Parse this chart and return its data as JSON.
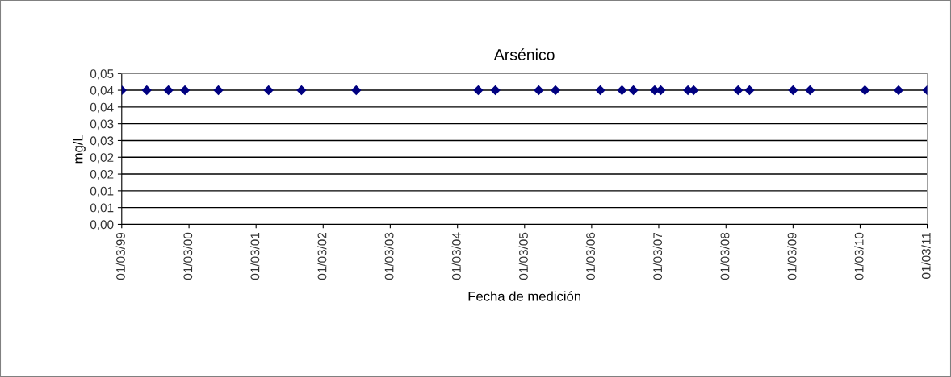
{
  "chart_data": {
    "type": "scatter",
    "title": "Arsénico",
    "xlabel": "Fecha de medición",
    "ylabel": "mg/L",
    "x": [
      "1999-03-01",
      "1999-07-15",
      "1999-11-10",
      "2000-02-08",
      "2000-08-08",
      "2001-05-08",
      "2001-11-03",
      "2002-08-28",
      "2004-06-22",
      "2004-09-23",
      "2005-05-17",
      "2005-08-16",
      "2006-04-17",
      "2006-08-13",
      "2006-10-14",
      "2007-02-07",
      "2007-03-12",
      "2007-08-07",
      "2007-09-07",
      "2008-05-06",
      "2008-07-07",
      "2009-03-01",
      "2009-06-01",
      "2010-03-27",
      "2010-09-26",
      "2011-03-01"
    ],
    "series": [
      {
        "color": "#000080",
        "values": [
          0.04,
          0.04,
          0.04,
          0.04,
          0.04,
          0.04,
          0.04,
          0.04,
          0.04,
          0.04,
          0.04,
          0.04,
          0.04,
          0.04,
          0.04,
          0.04,
          0.04,
          0.04,
          0.04,
          0.04,
          0.04,
          0.04,
          0.04,
          0.04,
          0.04,
          0.04
        ]
      }
    ],
    "marker": "diamond",
    "grid": "y",
    "xlim": [
      "1999-03-01",
      "2011-03-01"
    ],
    "xticks": [
      {
        "value": "1999-03-01",
        "label": "01/03/99"
      },
      {
        "value": "2000-03-01",
        "label": "01/03/00"
      },
      {
        "value": "2001-03-01",
        "label": "01/03/01"
      },
      {
        "value": "2002-03-01",
        "label": "01/03/02"
      },
      {
        "value": "2003-03-01",
        "label": "01/03/03"
      },
      {
        "value": "2004-03-01",
        "label": "01/03/04"
      },
      {
        "value": "2005-03-01",
        "label": "01/03/05"
      },
      {
        "value": "2006-03-01",
        "label": "01/03/06"
      },
      {
        "value": "2007-03-01",
        "label": "01/03/07"
      },
      {
        "value": "2008-03-01",
        "label": "01/03/08"
      },
      {
        "value": "2009-03-01",
        "label": "01/03/09"
      },
      {
        "value": "2010-03-01",
        "label": "01/03/10"
      },
      {
        "value": "2011-03-01",
        "label": "01/03/11"
      }
    ],
    "ylim": [
      0,
      0.045
    ],
    "yticks": [
      {
        "value": 0,
        "label": "0,00"
      },
      {
        "value": 0.005,
        "label": "0,01"
      },
      {
        "value": 0.01,
        "label": "0,01"
      },
      {
        "value": 0.015,
        "label": "0,02"
      },
      {
        "value": 0.02,
        "label": "0,02"
      },
      {
        "value": 0.025,
        "label": "0,03"
      },
      {
        "value": 0.03,
        "label": "0,03"
      },
      {
        "value": 0.035,
        "label": "0,04"
      },
      {
        "value": 0.04,
        "label": "0,04"
      },
      {
        "value": 0.045,
        "label": "0,05"
      }
    ]
  }
}
